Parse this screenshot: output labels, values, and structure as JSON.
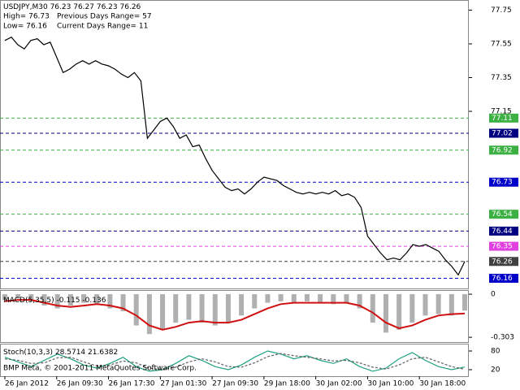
{
  "chart_data": [
    {
      "type": "line",
      "title": "USDJPY,M30",
      "quote": [
        76.23,
        76.27,
        76.23,
        76.26
      ],
      "info": [
        "High= 76.73",
        "Previous Days Range= 57",
        "Low= 76.16",
        "Current Days Range= 11"
      ],
      "footer": "BMP Meta, © 2001-2011 MetaQuotes Software Corp.",
      "categories": [
        "26 Jan 2012",
        null,
        null,
        null,
        null,
        null,
        null,
        null,
        "26 Jan 09:30",
        null,
        null,
        null,
        null,
        null,
        null,
        null,
        "26 Jan 17:30",
        null,
        null,
        null,
        null,
        null,
        null,
        null,
        "27 Jan 01:30",
        null,
        null,
        null,
        null,
        null,
        null,
        null,
        "27 Jan 09:30",
        null,
        null,
        null,
        null,
        null,
        null,
        null,
        "29 Jan 18:00",
        null,
        null,
        null,
        null,
        null,
        null,
        null,
        "30 Jan 02:00",
        null,
        null,
        null,
        null,
        null,
        null,
        null,
        "30 Jan 10:00",
        null,
        null,
        null,
        null,
        null,
        null,
        null,
        "30 Jan 18:00",
        null,
        null,
        null,
        null,
        null,
        null,
        null
      ],
      "series": [
        {
          "color": "#000000",
          "values": [
            77.57,
            77.59,
            77.545,
            77.52,
            77.57,
            77.58,
            77.545,
            77.56,
            77.47,
            77.38,
            77.4,
            77.43,
            77.45,
            77.43,
            77.45,
            77.43,
            77.42,
            77.4,
            77.37,
            77.35,
            77.38,
            77.33,
            76.99,
            77.04,
            77.09,
            77.11,
            77.06,
            76.99,
            77.01,
            76.94,
            76.95,
            76.87,
            76.8,
            76.75,
            76.7,
            76.68,
            76.69,
            76.66,
            76.69,
            76.73,
            76.76,
            76.75,
            76.74,
            76.71,
            76.69,
            76.67,
            76.66,
            76.67,
            76.66,
            76.67,
            76.66,
            76.68,
            76.65,
            76.66,
            76.64,
            76.58,
            76.41,
            76.36,
            76.31,
            76.27,
            76.28,
            76.27,
            76.31,
            76.36,
            76.35,
            76.36,
            76.34,
            76.32,
            76.27,
            76.23,
            76.18,
            76.26
          ]
        }
      ],
      "ylim": [
        76.1,
        77.81
      ],
      "yticks": [
        77.75,
        77.55,
        77.35,
        77.15
      ],
      "levels": [
        {
          "value": 77.11,
          "color": "#3cb043"
        },
        {
          "value": 77.02,
          "color": "#000080"
        },
        {
          "value": 76.92,
          "color": "#3cb043"
        },
        {
          "value": 76.73,
          "color": "#0000c8"
        },
        {
          "value": 76.54,
          "color": "#3cb043"
        },
        {
          "value": 76.44,
          "color": "#000080"
        },
        {
          "value": 76.35,
          "color": "#e040e0"
        },
        {
          "value": 76.26,
          "color": "#404040"
        },
        {
          "value": 76.16,
          "color": "#0000c8"
        }
      ]
    },
    {
      "type": "bar",
      "title": "MACD(5,35,5)",
      "readout": [
        -0.115,
        -0.136
      ],
      "series": [
        {
          "color": "#b0b0b0",
          "values": [
            -0.04,
            -0.03,
            -0.05,
            -0.08,
            -0.1,
            -0.08,
            -0.06,
            -0.07,
            -0.1,
            -0.12,
            -0.22,
            -0.28,
            -0.25,
            -0.2,
            -0.18,
            -0.2,
            -0.22,
            -0.2,
            -0.15,
            -0.1,
            -0.06,
            -0.05,
            -0.06,
            -0.05,
            -0.06,
            -0.07,
            -0.06,
            -0.1,
            -0.2,
            -0.27,
            -0.25,
            -0.2,
            -0.15,
            -0.14,
            -0.15,
            -0.115
          ]
        },
        {
          "color": "#d01010",
          "values": [
            -0.05,
            -0.04,
            -0.04,
            -0.06,
            -0.08,
            -0.09,
            -0.08,
            -0.07,
            -0.08,
            -0.1,
            -0.15,
            -0.22,
            -0.25,
            -0.23,
            -0.2,
            -0.19,
            -0.2,
            -0.2,
            -0.18,
            -0.14,
            -0.1,
            -0.07,
            -0.06,
            -0.06,
            -0.06,
            -0.06,
            -0.06,
            -0.08,
            -0.13,
            -0.2,
            -0.24,
            -0.22,
            -0.18,
            -0.15,
            -0.14,
            -0.136
          ]
        }
      ],
      "ylim": [
        -0.331,
        0.029
      ],
      "yticks": [
        0,
        -0.303
      ]
    },
    {
      "type": "line",
      "title": "Stoch(10,3,3)",
      "readout": [
        28.5714,
        21.6382
      ],
      "series": [
        {
          "color": "#20a080",
          "values": [
            60,
            45,
            30,
            50,
            70,
            55,
            35,
            25,
            40,
            60,
            30,
            15,
            20,
            40,
            65,
            50,
            30,
            20,
            35,
            60,
            80,
            70,
            55,
            65,
            50,
            40,
            55,
            30,
            15,
            25,
            55,
            75,
            50,
            30,
            20,
            28.5714
          ]
        },
        {
          "color": "#606060",
          "values": [
            55,
            50,
            40,
            42,
            58,
            60,
            45,
            32,
            35,
            48,
            42,
            25,
            20,
            28,
            45,
            55,
            45,
            30,
            28,
            42,
            62,
            72,
            65,
            60,
            55,
            48,
            50,
            42,
            28,
            22,
            35,
            55,
            60,
            45,
            30,
            21.6382
          ]
        }
      ],
      "ylim": [
        1.7,
        98.3
      ],
      "yticks": [
        80,
        20
      ]
    }
  ]
}
